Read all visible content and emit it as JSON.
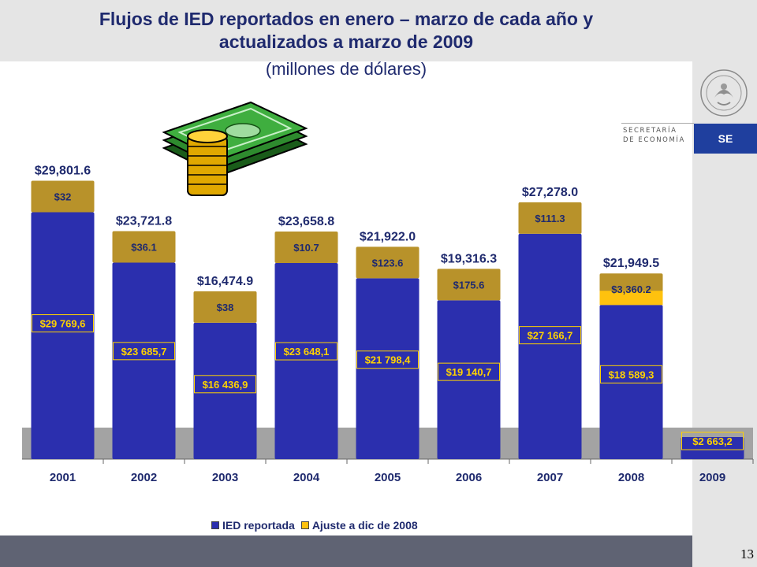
{
  "header": {
    "title_line1": "Flujos de IED reportados en enero – marzo de cada año y",
    "title_line2": "actualizados a marzo de 2009",
    "subtitle": "(millones de dólares)"
  },
  "logo": {
    "secretaria_line1": "SECRETARÍA",
    "secretaria_line2": "DE ECONOMÍA",
    "badge": "SE"
  },
  "page_number": "13",
  "colors": {
    "reported": "#2b2fae",
    "adjustment": "#b8922a",
    "adjustment_bright": "#ffc20e",
    "value_label": "#ffd200",
    "title": "#1f2a6e"
  },
  "chart_data": {
    "type": "bar",
    "stacked": true,
    "categories": [
      "2001",
      "2002",
      "2003",
      "2004",
      "2005",
      "2006",
      "2007",
      "2008",
      "2009"
    ],
    "series": [
      {
        "name": "IED reportada",
        "values": [
          29769.6,
          23685.7,
          16436.9,
          23648.1,
          21798.4,
          19140.7,
          27166.7,
          18589.3,
          2663.2
        ],
        "labels": [
          "$29 769,6",
          "$23 685,7",
          "$16 436,9",
          "$23 648,1",
          "$21 798,4",
          "$19 140,7",
          "$27 166,7",
          "$18 589,3",
          "$2 663,2"
        ]
      },
      {
        "name": "Ajuste a dic de 2008",
        "values": [
          32,
          36.1,
          38,
          10.7,
          123.6,
          175.6,
          111.3,
          3360.2,
          null
        ],
        "labels": [
          "$32",
          "$36.1",
          "$38",
          "$10.7",
          "$123.6",
          "$175.6",
          "$111.3",
          "$3,360.2",
          ""
        ]
      }
    ],
    "totals": [
      "$29,801.6",
      "$23,721.8",
      "$16,474.9",
      "$23,658.8",
      "$21,922.0",
      "$19,316.3",
      "$27,278.0",
      "$21,949.5",
      ""
    ],
    "ylim": [
      0,
      32000
    ],
    "legend": {
      "position": "bottom",
      "entries": [
        "IED reportada",
        "Ajuste a dic de 2008"
      ]
    }
  }
}
